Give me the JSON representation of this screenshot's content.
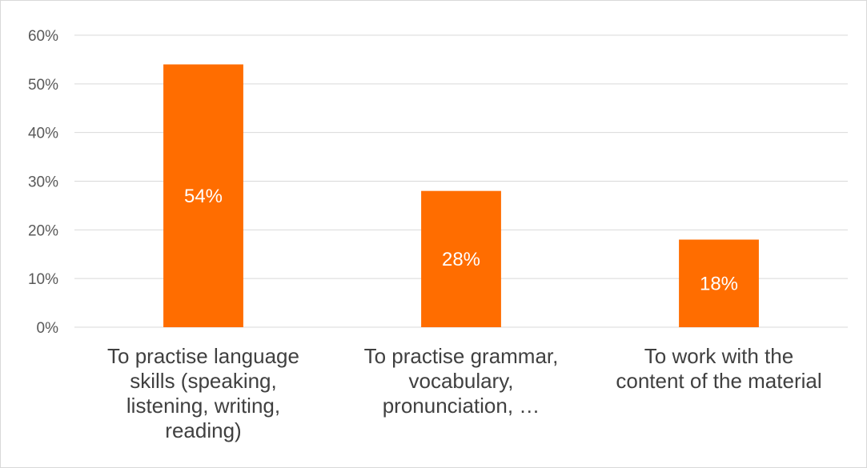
{
  "chart_data": {
    "type": "bar",
    "categories": [
      [
        "To practise language",
        "skills (speaking,",
        "listening, writing,",
        "reading)"
      ],
      [
        "To practise grammar,",
        "vocabulary,",
        "pronunciation, …"
      ],
      [
        "To work with the",
        "content of the material"
      ]
    ],
    "values": [
      54,
      28,
      18
    ],
    "data_labels": [
      "54%",
      "28%",
      "18%"
    ],
    "yticks": [
      "0%",
      "10%",
      "20%",
      "30%",
      "40%",
      "50%",
      "60%"
    ],
    "ylim": [
      0,
      60
    ],
    "bar_color": "#ff6d00",
    "grid": true,
    "legend": "none"
  }
}
